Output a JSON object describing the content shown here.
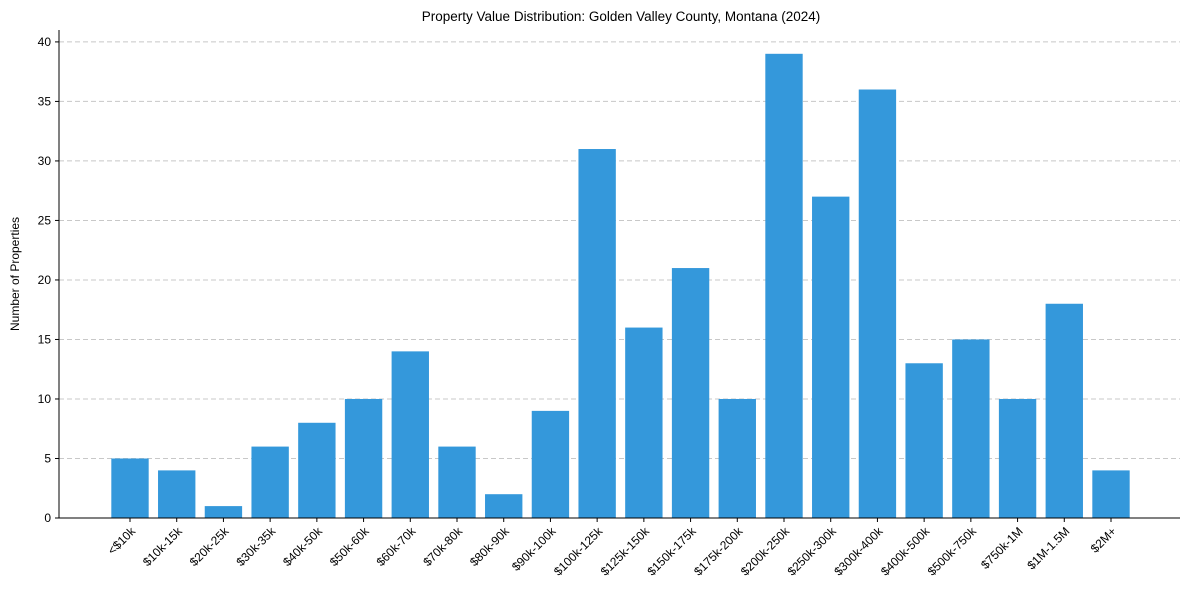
{
  "chart_data": {
    "type": "bar",
    "title": "Property Value Distribution: Golden Valley County, Montana (2024)",
    "xlabel": "",
    "ylabel": "Number of Properties",
    "ylim": [
      0,
      41
    ],
    "yticks": [
      0,
      5,
      10,
      15,
      20,
      25,
      30,
      35,
      40
    ],
    "grid": "y-dashed",
    "categories": [
      "<$10k",
      "$10k-15k",
      "$20k-25k",
      "$30k-35k",
      "$40k-50k",
      "$50k-60k",
      "$60k-70k",
      "$70k-80k",
      "$80k-90k",
      "$90k-100k",
      "$100k-125k",
      "$125k-150k",
      "$150k-175k",
      "$175k-200k",
      "$200k-250k",
      "$250k-300k",
      "$300k-400k",
      "$400k-500k",
      "$500k-750k",
      "$750k-1M",
      "$1M-1.5M",
      "$2M+"
    ],
    "values": [
      5,
      4,
      1,
      6,
      8,
      10,
      14,
      6,
      2,
      9,
      31,
      16,
      21,
      10,
      39,
      27,
      36,
      13,
      15,
      10,
      18,
      4
    ],
    "bar_color": "#3498db"
  }
}
